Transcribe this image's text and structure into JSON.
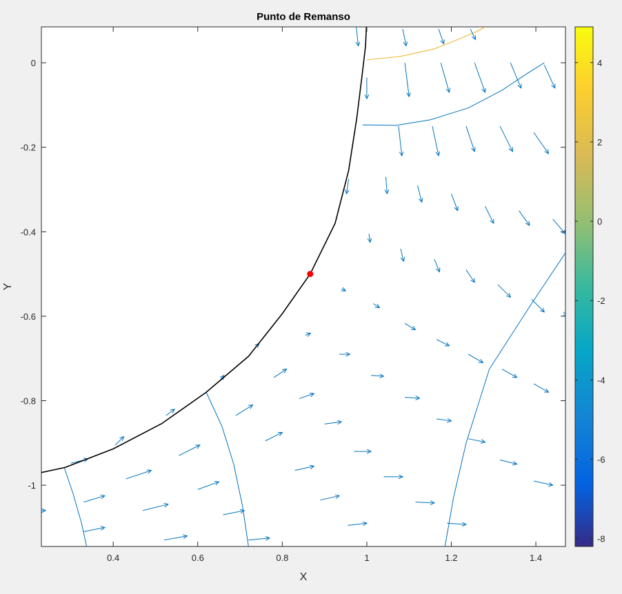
{
  "chart_data": {
    "type": "quiver",
    "title": "Punto de Remanso",
    "xlabel": "X",
    "ylabel": "Y",
    "xlim": [
      0.23,
      1.47
    ],
    "ylim": [
      -1.145,
      0.085
    ],
    "xticks": [
      0.4,
      0.6,
      0.8,
      1,
      1.2,
      1.4
    ],
    "xtick_labels": [
      "0.4",
      "0.6",
      "0.8",
      "1",
      "1.2",
      "1.4"
    ],
    "yticks": [
      0,
      -0.2,
      -0.4,
      -0.6,
      -0.8,
      -1
    ],
    "ytick_labels": [
      "0",
      "-0.2",
      "-0.4",
      "-0.6",
      "-0.8",
      "-1"
    ],
    "grid": false,
    "colorbar": {
      "colormap": "parula",
      "range": [
        -8.2,
        4.9
      ],
      "ticks": [
        4,
        2,
        0,
        -2,
        -4,
        -6,
        -8
      ],
      "tick_labels": [
        "4",
        "2",
        "0",
        "-2",
        "-4",
        "-6",
        "-8"
      ]
    },
    "stagnation_point": {
      "x": 0.866,
      "y": -0.5,
      "color": "#ff0000"
    },
    "body_boundary": {
      "color": "#000000",
      "x": [
        0.23,
        0.286,
        0.4,
        0.515,
        0.62,
        0.72,
        0.8,
        0.866,
        0.925,
        0.957,
        0.976,
        0.99,
        0.997,
        0.999
      ],
      "y": [
        -0.97,
        -0.958,
        -0.914,
        -0.854,
        -0.78,
        -0.695,
        -0.594,
        -0.5,
        -0.38,
        -0.255,
        -0.133,
        -0.02,
        0.04,
        0.085
      ]
    },
    "contours": [
      {
        "color": "#edb120",
        "x": [
          1.0,
          1.08,
          1.16,
          1.22,
          1.26,
          1.28
        ],
        "y": [
          0.007,
          0.015,
          0.033,
          0.057,
          0.074,
          0.085
        ]
      },
      {
        "color": "#0072bd",
        "x": [
          0.99,
          1.07,
          1.15,
          1.24,
          1.32,
          1.38,
          1.42
        ],
        "y": [
          -0.147,
          -0.148,
          -0.135,
          -0.107,
          -0.065,
          -0.025,
          0.0
        ]
      },
      {
        "color": "#0072bd",
        "x": [
          0.284,
          0.305,
          0.325,
          0.337
        ],
        "y": [
          -0.958,
          -1.02,
          -1.09,
          -1.145
        ]
      },
      {
        "color": "#0072bd",
        "x": [
          0.62,
          0.657,
          0.685,
          0.706,
          0.72
        ],
        "y": [
          -0.78,
          -0.86,
          -0.95,
          -1.05,
          -1.145
        ]
      },
      {
        "color": "#0072bd",
        "x": [
          1.47,
          1.39,
          1.29,
          1.235,
          1.205,
          1.185
        ],
        "y": [
          -0.45,
          -0.57,
          -0.725,
          -0.9,
          -1.03,
          -1.145
        ]
      }
    ],
    "quiver": {
      "color": "#0072bd",
      "vectors": [
        [
          0.975,
          0.085,
          0.005,
          -0.045
        ],
        [
          1.085,
          0.08,
          0.008,
          -0.04
        ],
        [
          1.17,
          0.08,
          0.012,
          -0.035
        ],
        [
          1.245,
          0.08,
          0.012,
          -0.025
        ],
        [
          1.0,
          -0.035,
          0.0,
          -0.05
        ],
        [
          1.09,
          0.0,
          0.01,
          -0.08
        ],
        [
          1.175,
          0.0,
          0.02,
          -0.07
        ],
        [
          1.255,
          0.0,
          0.025,
          -0.07
        ],
        [
          1.34,
          0.0,
          0.025,
          -0.06
        ],
        [
          1.42,
          -0.005,
          0.025,
          -0.055
        ],
        [
          1.075,
          -0.15,
          0.008,
          -0.07
        ],
        [
          1.155,
          -0.15,
          0.015,
          -0.07
        ],
        [
          1.235,
          -0.15,
          0.02,
          -0.06
        ],
        [
          1.315,
          -0.15,
          0.03,
          -0.06
        ],
        [
          1.395,
          -0.165,
          0.035,
          -0.05
        ],
        [
          0.957,
          -0.275,
          -0.005,
          -0.035
        ],
        [
          1.045,
          -0.27,
          0.003,
          -0.04
        ],
        [
          1.12,
          -0.29,
          0.01,
          -0.04
        ],
        [
          1.2,
          -0.31,
          0.015,
          -0.04
        ],
        [
          1.28,
          -0.34,
          0.02,
          -0.04
        ],
        [
          1.36,
          -0.35,
          0.025,
          -0.035
        ],
        [
          1.44,
          -0.37,
          0.03,
          -0.035
        ],
        [
          1.005,
          -0.405,
          0.003,
          -0.02
        ],
        [
          1.08,
          -0.44,
          0.007,
          -0.03
        ],
        [
          1.16,
          -0.465,
          0.012,
          -0.03
        ],
        [
          1.235,
          -0.49,
          0.02,
          -0.03
        ],
        [
          1.31,
          -0.525,
          0.03,
          -0.03
        ],
        [
          1.39,
          -0.56,
          0.03,
          -0.03
        ],
        [
          1.465,
          -0.59,
          0.01,
          -0.01
        ],
        [
          0.94,
          -0.535,
          0.01,
          -0.005
        ],
        [
          1.015,
          -0.57,
          0.015,
          -0.01
        ],
        [
          1.09,
          -0.617,
          0.025,
          -0.015
        ],
        [
          1.165,
          -0.655,
          0.03,
          -0.015
        ],
        [
          1.24,
          -0.69,
          0.035,
          -0.02
        ],
        [
          1.32,
          -0.725,
          0.035,
          -0.02
        ],
        [
          1.395,
          -0.76,
          0.035,
          -0.02
        ],
        [
          1.47,
          -0.795,
          0.015,
          -0.01
        ],
        [
          0.855,
          -0.645,
          0.012,
          0.005
        ],
        [
          0.935,
          -0.69,
          0.025,
          0.0
        ],
        [
          1.01,
          -0.74,
          0.03,
          -0.002
        ],
        [
          1.09,
          -0.792,
          0.035,
          -0.002
        ],
        [
          1.165,
          -0.843,
          0.035,
          -0.005
        ],
        [
          1.24,
          -0.89,
          0.04,
          -0.008
        ],
        [
          1.315,
          -0.94,
          0.04,
          -0.01
        ],
        [
          1.395,
          -0.99,
          0.045,
          -0.01
        ],
        [
          0.735,
          -0.675,
          0.01,
          0.01
        ],
        [
          0.78,
          -0.745,
          0.03,
          0.02
        ],
        [
          0.84,
          -0.795,
          0.035,
          0.012
        ],
        [
          0.9,
          -0.855,
          0.04,
          0.005
        ],
        [
          0.97,
          -0.92,
          0.04,
          0.0
        ],
        [
          1.04,
          -0.98,
          0.045,
          0.0
        ],
        [
          1.115,
          -1.04,
          0.045,
          -0.002
        ],
        [
          1.19,
          -1.09,
          0.045,
          -0.003
        ],
        [
          0.65,
          -0.755,
          0.012,
          0.015
        ],
        [
          0.69,
          -0.835,
          0.04,
          0.025
        ],
        [
          0.76,
          -0.895,
          0.04,
          0.02
        ],
        [
          0.83,
          -0.965,
          0.045,
          0.01
        ],
        [
          0.89,
          -1.035,
          0.045,
          0.01
        ],
        [
          0.955,
          -1.095,
          0.045,
          0.005
        ],
        [
          0.525,
          -0.835,
          0.02,
          0.015
        ],
        [
          0.555,
          -0.93,
          0.05,
          0.025
        ],
        [
          0.6,
          -1.01,
          0.05,
          0.018
        ],
        [
          0.66,
          -1.07,
          0.05,
          0.01
        ],
        [
          0.72,
          -1.13,
          0.05,
          0.005
        ],
        [
          0.405,
          -0.905,
          0.02,
          0.02
        ],
        [
          0.43,
          -0.985,
          0.06,
          0.02
        ],
        [
          0.47,
          -1.06,
          0.06,
          0.015
        ],
        [
          0.52,
          -1.13,
          0.055,
          0.01
        ],
        [
          0.3,
          -0.948,
          0.04,
          0.01
        ],
        [
          0.33,
          -1.04,
          0.05,
          0.015
        ],
        [
          0.33,
          -1.11,
          0.05,
          0.01
        ],
        [
          0.23,
          -1.06,
          0.01,
          0.0
        ]
      ]
    }
  }
}
